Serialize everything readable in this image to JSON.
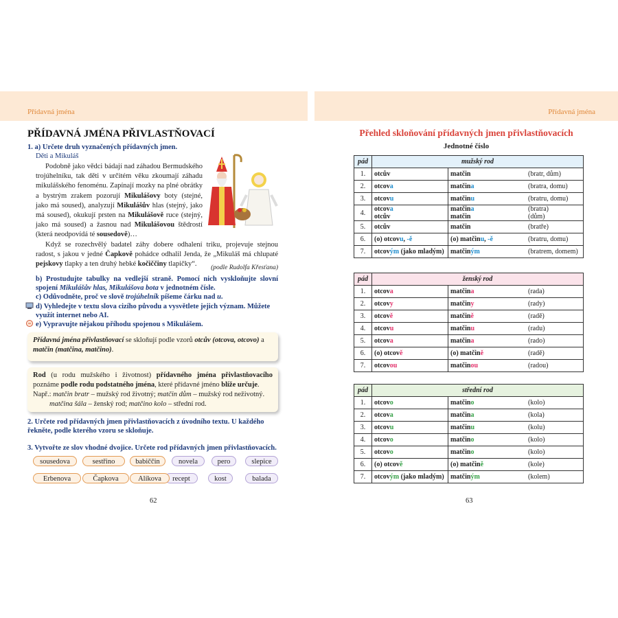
{
  "left": {
    "running_head": "Přídavná jména",
    "title": "PŘÍDAVNÁ JMÉNA PŘIVLASTŇOVACÍ",
    "task1a": "1. a) Určete druh vyznačených přídavných jmen.",
    "story_title": "Děti a Mikuláš",
    "story_p1": [
      "Podobně jako vědci bádají nad záhadou Bermudského trojúhelníku, tak děti v určitém věku zkoumají záhadu mikulášského fenoménu. Zapínají mozky na plné obrátky a bystrým zrakem pozorují ",
      "Mikulášovy",
      " boty (stejné, jako má soused), analyzují ",
      "Mikulášův",
      " hlas (stejný, jako má soused), okukují prsten na ",
      "Mikulášově",
      " ruce (stejný, jako má soused) a žasnou nad ",
      "Mikulášovou",
      " štědrostí (která neodpovídá té ",
      "sousedově",
      ")…"
    ],
    "story_p2": [
      "Když se rozechvělý badatel záhy dobere odhalení triku, projevuje stejnou radost, s jakou v jedné ",
      "Čapkově",
      " pohádce odhalil Jenda, že „Mikuláš má chlupaté ",
      "pejskovy",
      " tlapky a ten druhý hebké ",
      "kočiččiny",
      " tlapičky“."
    ],
    "source": "(podle Rudolfa Křesťana)",
    "task1b": [
      "b) Prostudujte tabulky na vedlejší straně. Pomocí nich vyskloňujte slovní spojení ",
      "Mikulášův hlas, Mikulášova bota",
      " v jednotném čísle."
    ],
    "task1c": [
      "c) Odůvodněte, proč ve slově ",
      "trojúhelník",
      " píšeme čárku nad ",
      "u",
      "."
    ],
    "task1d": "d) Vyhledejte v textu slova cizího původu a vysvětlete jejich význam. Můžete využít internet nebo AI.",
    "task1e": "e) Vypravujte nějakou příhodu spojenou s Mikulášem.",
    "box1": [
      "Přídavná jména přivlastňovací",
      " se skloňují podle vzorů ",
      "otcův (otcova, otcovo)",
      " a ",
      "matčin (matčina, matčino)",
      "."
    ],
    "box2": [
      "Rod",
      " (u rodu mužského i životnost) ",
      "přídavného jména přivlastňovacího",
      " poznáme ",
      "podle rodu podstatného jména",
      ", které přídavné jméno ",
      "blíže určuje",
      "."
    ],
    "box2_example1": [
      "Např.: ",
      "matčin bratr",
      " – mužský rod životný; ",
      "matčin dům",
      " – mužský rod neživotný."
    ],
    "box2_example2": [
      "matčina šála",
      " – ženský rod; ",
      "matčino kolo",
      " – střední rod."
    ],
    "task2": "2. Určete rod přídavných jmen přivlastňovacích z úvodního textu. U každého řekněte, podle kterého vzoru se skloňuje.",
    "task3": "3. Vytvořte ze slov vhodné dvojice. Určete rod přídavných jmen přivlastňovacích.",
    "chips_adjectives": [
      "sousedova",
      "sestřino",
      "babiččin",
      "Erbenova",
      "Čapkova",
      "Alíkova"
    ],
    "chips_nouns": [
      "novela",
      "pero",
      "slepice",
      "recept",
      "kost",
      "balada"
    ],
    "page_number": "62"
  },
  "right": {
    "running_head": "Přídavná jména",
    "title": "Přehled skloňování přídavných jmen přivlastňovacích",
    "subtitle": "Jednotné číslo",
    "page_number": "63",
    "tables": [
      {
        "case_header": "pád",
        "gender": "mužský rod",
        "header_color": "#e3f1fa",
        "ending_color": "#1f8ccc",
        "rows": [
          {
            "case": "1.",
            "a": [
              [
                "otcův"
              ]
            ],
            "b": [
              [
                "matčin"
              ]
            ],
            "note": [
              "(bratr, dům)"
            ]
          },
          {
            "case": "2.",
            "a": [
              [
                "otcov",
                "a"
              ]
            ],
            "b": [
              [
                "matčin",
                "a"
              ]
            ],
            "note": [
              "(bratra, domu)"
            ]
          },
          {
            "case": "3.",
            "a": [
              [
                "otcov",
                "u"
              ]
            ],
            "b": [
              [
                "matčin",
                "u"
              ]
            ],
            "note": [
              "(bratru, domu)"
            ]
          },
          {
            "case": "4.",
            "a": [
              [
                "otcov",
                "a"
              ],
              [
                "otcův"
              ]
            ],
            "b": [
              [
                "matčin",
                "a"
              ],
              [
                "matčin"
              ]
            ],
            "note": [
              "(bratra)",
              "(dům)"
            ]
          },
          {
            "case": "5.",
            "a": [
              [
                "otcův"
              ]
            ],
            "b": [
              [
                "matčin"
              ]
            ],
            "note": [
              "(bratře)"
            ]
          },
          {
            "case": "6.",
            "a": [
              [
                "(o) otcov",
                "u",
                ", ",
                "-ě"
              ]
            ],
            "b": [
              [
                "(o) matčin",
                "u",
                ", ",
                "-ě"
              ]
            ],
            "note": [
              "(bratru, domu)"
            ]
          },
          {
            "case": "7.",
            "a": [
              [
                "otcov",
                "ým",
                " (jako mladým)"
              ]
            ],
            "b": [
              [
                "matčin",
                "ým"
              ]
            ],
            "note": [
              "(bratrem, domem)"
            ]
          }
        ]
      },
      {
        "case_header": "pád",
        "gender": "ženský rod",
        "header_color": "#fbe3ea",
        "ending_color": "#e2336c",
        "rows": [
          {
            "case": "1.",
            "a": [
              [
                "otcov",
                "a"
              ]
            ],
            "b": [
              [
                "matčin",
                "a"
              ]
            ],
            "note": [
              "(rada)"
            ]
          },
          {
            "case": "2.",
            "a": [
              [
                "otcov",
                "y"
              ]
            ],
            "b": [
              [
                "matčin",
                "y"
              ]
            ],
            "note": [
              "(rady)"
            ]
          },
          {
            "case": "3.",
            "a": [
              [
                "otcov",
                "ě"
              ]
            ],
            "b": [
              [
                "matčin",
                "ě"
              ]
            ],
            "note": [
              "(radě)"
            ]
          },
          {
            "case": "4.",
            "a": [
              [
                "otcov",
                "u"
              ]
            ],
            "b": [
              [
                "matčin",
                "u"
              ]
            ],
            "note": [
              "(radu)"
            ]
          },
          {
            "case": "5.",
            "a": [
              [
                "otcov",
                "a"
              ]
            ],
            "b": [
              [
                "matčin",
                "a"
              ]
            ],
            "note": [
              "(rado)"
            ]
          },
          {
            "case": "6.",
            "a": [
              [
                "(o) otcov",
                "ě"
              ]
            ],
            "b": [
              [
                "(o) matčin",
                "ě"
              ]
            ],
            "note": [
              "(radě)"
            ]
          },
          {
            "case": "7.",
            "a": [
              [
                "otcov",
                "ou"
              ]
            ],
            "b": [
              [
                "matčin",
                "ou"
              ]
            ],
            "note": [
              "(radou)"
            ]
          }
        ]
      },
      {
        "case_header": "pád",
        "gender": "střední rod",
        "header_color": "#e6f2df",
        "ending_color": "#36a047",
        "rows": [
          {
            "case": "1.",
            "a": [
              [
                "otcov",
                "o"
              ]
            ],
            "b": [
              [
                "matčin",
                "o"
              ]
            ],
            "note": [
              "(kolo)"
            ]
          },
          {
            "case": "2.",
            "a": [
              [
                "otcov",
                "a"
              ]
            ],
            "b": [
              [
                "matčin",
                "a"
              ]
            ],
            "note": [
              "(kola)"
            ]
          },
          {
            "case": "3.",
            "a": [
              [
                "otcov",
                "u"
              ]
            ],
            "b": [
              [
                "matčin",
                "u"
              ]
            ],
            "note": [
              "(kolu)"
            ]
          },
          {
            "case": "4.",
            "a": [
              [
                "otcov",
                "o"
              ]
            ],
            "b": [
              [
                "matčin",
                "o"
              ]
            ],
            "note": [
              "(kolo)"
            ]
          },
          {
            "case": "5.",
            "a": [
              [
                "otcov",
                "o"
              ]
            ],
            "b": [
              [
                "matčin",
                "o"
              ]
            ],
            "note": [
              "(kolo)"
            ]
          },
          {
            "case": "6.",
            "a": [
              [
                "(o) otcov",
                "ě"
              ]
            ],
            "b": [
              [
                "(o) matčin",
                "ě"
              ]
            ],
            "note": [
              "(kole)"
            ]
          },
          {
            "case": "7.",
            "a": [
              [
                "otcov",
                "ým",
                " (jako mladým)"
              ]
            ],
            "b": [
              [
                "matčin",
                "ým"
              ]
            ],
            "note": [
              "(kolem)"
            ]
          }
        ]
      }
    ]
  }
}
